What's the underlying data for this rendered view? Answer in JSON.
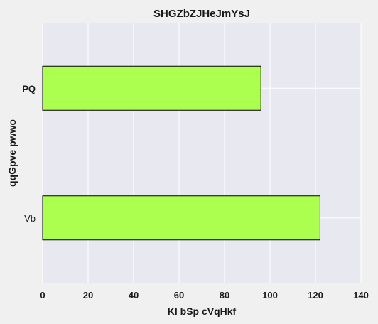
{
  "chart_data": {
    "type": "bar",
    "orientation": "horizontal",
    "title": "SHGZbZJHeJmYsJ",
    "xlabel": "Kl bSp  cVqHkf",
    "ylabel": "qqGpve pwwo",
    "categories": [
      "PQ",
      "Vb"
    ],
    "category_label_bold": [
      true,
      false
    ],
    "values": [
      96,
      122
    ],
    "xlim": [
      0,
      140
    ],
    "xticks": [
      0,
      20,
      40,
      60,
      80,
      100,
      120,
      140
    ],
    "grid": true,
    "legend": "none",
    "colors": {
      "bar_fill": "#adff4f",
      "bar_edge": "#000000",
      "plot_background": "#e8e8f0",
      "figure_background": "#f0f0f0",
      "grid": "#ffffff"
    }
  }
}
